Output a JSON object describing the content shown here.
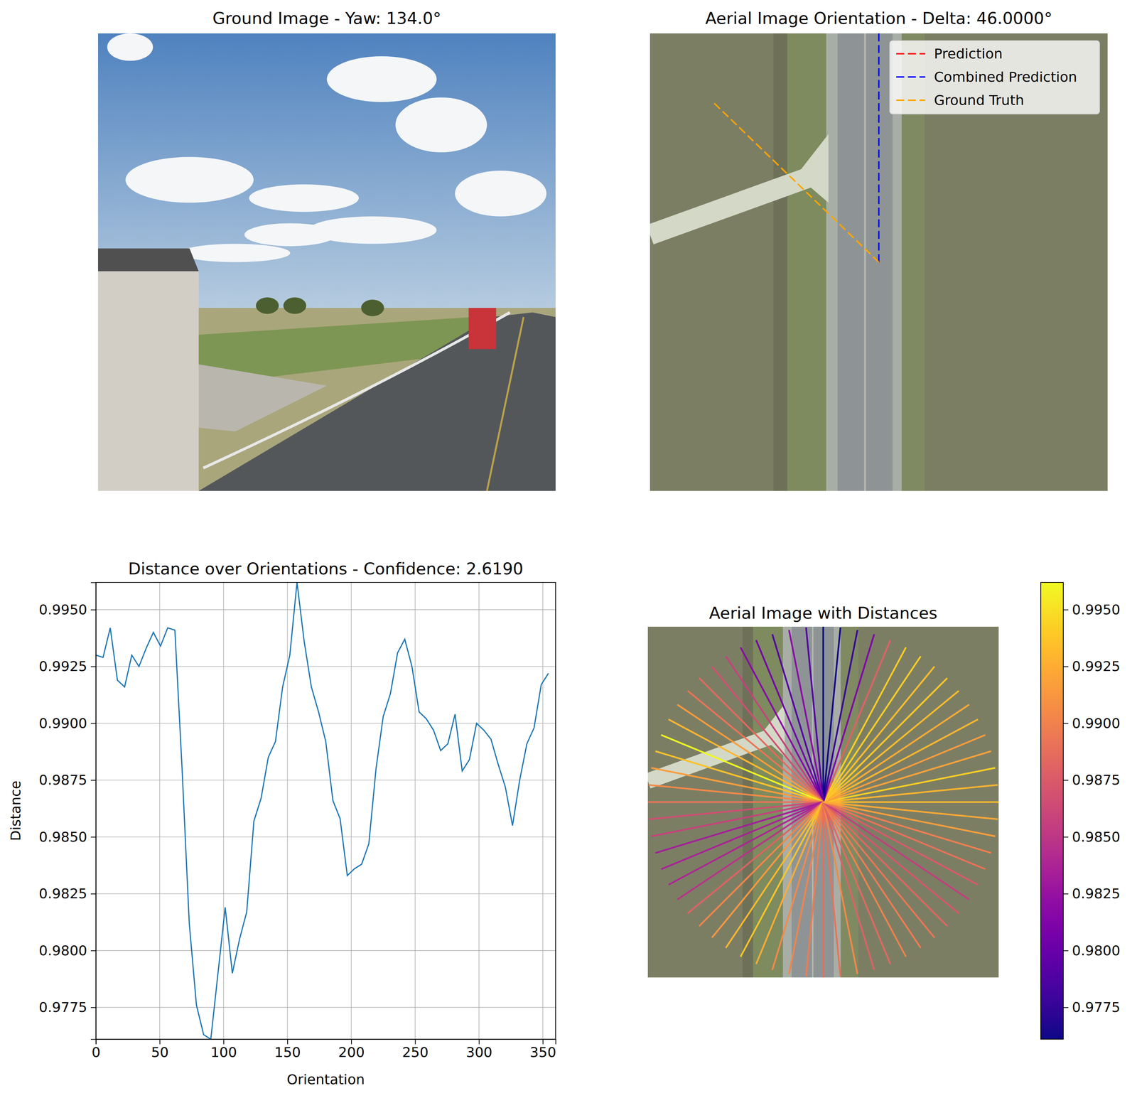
{
  "chart_data": [
    {
      "type": "image",
      "title": "Ground Image - Yaw: 134.0°"
    },
    {
      "type": "orientation",
      "title": "Aerial Image Orientation - Delta: 46.0000°",
      "legend": "upper-right",
      "series": [
        {
          "name": "Prediction",
          "color": "red",
          "line_style": "dashed",
          "values": [
            90
          ]
        },
        {
          "name": "Combined Prediction",
          "color": "blue",
          "line_style": "dashed",
          "values": [
            90
          ]
        },
        {
          "name": "Ground Truth",
          "color": "orange",
          "line_style": "dashed",
          "values": [
            136
          ]
        }
      ]
    },
    {
      "type": "line",
      "title": "Distance over Orientations - Confidence: 2.6190",
      "x_label": "Orientation",
      "y_label": "Distance",
      "color": "#1f77b4",
      "grid": true,
      "x": [
        0,
        5.625,
        11.25,
        16.875,
        22.5,
        28.125,
        33.75,
        39.375,
        45,
        50.625,
        56.25,
        61.875,
        67.5,
        73.125,
        78.75,
        84.375,
        90,
        95.625,
        101.25,
        106.875,
        112.5,
        118.125,
        123.75,
        129.375,
        135,
        140.625,
        146.25,
        151.875,
        157.5,
        163.125,
        168.75,
        174.375,
        180,
        185.625,
        191.25,
        196.875,
        202.5,
        208.125,
        213.75,
        219.375,
        225,
        230.625,
        236.25,
        241.875,
        247.5,
        253.125,
        258.75,
        264.375,
        270,
        275.625,
        281.25,
        286.875,
        292.5,
        298.125,
        303.75,
        309.375,
        315,
        320.625,
        326.25,
        331.875,
        337.5,
        343.125,
        348.75,
        354.375
      ],
      "values": [
        0.993,
        0.9929,
        0.9942,
        0.9919,
        0.9916,
        0.993,
        0.9925,
        0.9933,
        0.994,
        0.9934,
        0.9942,
        0.9941,
        0.988,
        0.9812,
        0.9776,
        0.9763,
        0.9761,
        0.979,
        0.9819,
        0.979,
        0.9805,
        0.9817,
        0.9857,
        0.9867,
        0.9885,
        0.9892,
        0.9916,
        0.993,
        0.9962,
        0.9936,
        0.9916,
        0.9905,
        0.9892,
        0.9866,
        0.9858,
        0.9833,
        0.9836,
        0.9838,
        0.9847,
        0.988,
        0.9903,
        0.9913,
        0.9931,
        0.9937,
        0.9925,
        0.9905,
        0.9902,
        0.9897,
        0.9888,
        0.9891,
        0.9904,
        0.9879,
        0.9884,
        0.99,
        0.9897,
        0.9893,
        0.9882,
        0.9872,
        0.9855,
        0.9875,
        0.9891,
        0.9898,
        0.9917,
        0.9922
      ],
      "xlim": [
        0,
        360
      ],
      "ylim": [
        0.9761,
        0.9962
      ],
      "xticks": [
        0,
        50,
        100,
        150,
        200,
        250,
        300,
        350
      ],
      "yticks": [
        {
          "value": 0.9775,
          "label": "0.9775"
        },
        {
          "value": 0.98,
          "label": "0.9800"
        },
        {
          "value": 0.9825,
          "label": "0.9825"
        },
        {
          "value": 0.985,
          "label": "0.9850"
        },
        {
          "value": 0.9875,
          "label": "0.9875"
        },
        {
          "value": 0.99,
          "label": "0.9900"
        },
        {
          "value": 0.9925,
          "label": "0.9925"
        },
        {
          "value": 0.995,
          "label": "0.9950"
        }
      ]
    },
    {
      "type": "radial",
      "title": "Aerial Image with Distances",
      "colorbar": {
        "range": [
          0.9761,
          0.9962
        ],
        "ticks": [
          {
            "value": 0.9775,
            "label": "0.9775"
          },
          {
            "value": 0.98,
            "label": "0.9800"
          },
          {
            "value": 0.9825,
            "label": "0.9825"
          },
          {
            "value": 0.985,
            "label": "0.9850"
          },
          {
            "value": 0.9875,
            "label": "0.9875"
          },
          {
            "value": 0.99,
            "label": "0.9900"
          },
          {
            "value": 0.9925,
            "label": "0.9925"
          },
          {
            "value": 0.995,
            "label": "0.9950"
          }
        ]
      }
    }
  ]
}
